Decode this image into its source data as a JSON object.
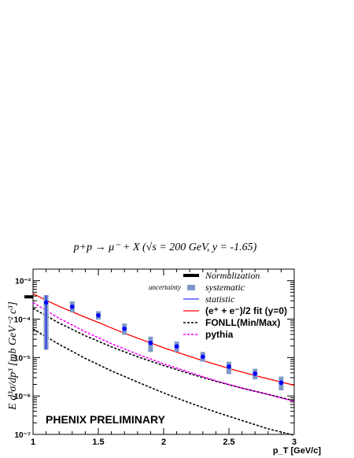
{
  "chart_data": {
    "type": "scatter",
    "title": "p+p → μ⁻ + X (√s = 200 GeV, y = -1.65)",
    "xlabel": "p_T [GeV/c]",
    "ylabel": "E d³σ/dp³ [mb GeV⁻² c³]",
    "xlim": [
      1,
      3
    ],
    "ylim": [
      1e-07,
      0.002
    ],
    "yscale": "log",
    "x_ticks": [
      {
        "value": 1,
        "label": "1"
      },
      {
        "value": 1.5,
        "label": "1.5"
      },
      {
        "value": 2,
        "label": "2"
      },
      {
        "value": 2.5,
        "label": "2.5"
      },
      {
        "value": 3,
        "label": "3"
      }
    ],
    "y_ticks": [
      {
        "value": 1e-07,
        "label": "10⁻⁷"
      },
      {
        "value": 1e-06,
        "label": "10⁻⁶"
      },
      {
        "value": 1e-05,
        "label": "10⁻⁵"
      },
      {
        "value": 0.0001,
        "label": "10⁻⁴"
      },
      {
        "value": 0.001,
        "label": "10⁻³"
      }
    ],
    "annotation": "PHENIX PRELIMINARY",
    "data_points": {
      "x": [
        1.1,
        1.3,
        1.5,
        1.7,
        1.9,
        2.1,
        2.3,
        2.5,
        2.7,
        2.9
      ],
      "y": [
        0.00027,
        0.00021,
        0.000125,
        5.6e-05,
        2.4e-05,
        1.95e-05,
        1.05e-05,
        5.8e-06,
        3.8e-06,
        2.2e-06
      ],
      "stat_low": [
        1.6e-05,
        0.00019,
        0.00011,
        4.9e-05,
        2.1e-05,
        1.7e-05,
        9.2e-06,
        5.1e-06,
        3.3e-06,
        1.9e-06
      ],
      "stat_high": [
        0.00042,
        0.00023,
        0.00014,
        6.3e-05,
        2.7e-05,
        2.2e-05,
        1.2e-05,
        6.6e-06,
        4.4e-06,
        2.6e-06
      ],
      "sys_low": [
        1.6e-05,
        0.00015,
        9.7e-05,
        3.9e-05,
        1.4e-05,
        1.4e-05,
        7.8e-06,
        3.7e-06,
        2.7e-06,
        1.4e-06
      ],
      "sys_high": [
        0.00042,
        0.00029,
        0.00016,
        7.7e-05,
        3.5e-05,
        2.6e-05,
        1.4e-05,
        7.8e-06,
        5.1e-06,
        3.2e-06
      ]
    },
    "series": [
      {
        "name": "(e⁺ + e⁻)/2 fit (y=0)",
        "style": "solid",
        "color": "#ff0000",
        "x": [
          1.0,
          1.1,
          1.2,
          1.3,
          1.4,
          1.5,
          1.6,
          1.7,
          1.8,
          1.9,
          2.0,
          2.1,
          2.2,
          2.3,
          2.4,
          2.5,
          2.6,
          2.7,
          2.8,
          2.9,
          3.0
        ],
        "y": [
          0.00046,
          0.00031,
          0.000215,
          0.000155,
          0.000112,
          8.2e-05,
          5.9e-05,
          4.3e-05,
          3.2e-05,
          2.4e-05,
          1.8e-05,
          1.38e-05,
          1.07e-05,
          8.3e-06,
          6.6e-06,
          5.2e-06,
          4.2e-06,
          3.4e-06,
          2.8e-06,
          2.3e-06,
          1.9e-06
        ]
      },
      {
        "name": "FONLL(Min/Max)",
        "style": "dashed",
        "color": "#000000",
        "x": [
          1.0,
          1.2,
          1.4,
          1.6,
          1.8,
          2.0,
          2.2,
          2.4,
          2.6,
          2.8,
          3.0
        ],
        "y": [
          0.00019,
          7.9e-05,
          3.7e-05,
          1.9e-05,
          1.05e-05,
          6.2e-06,
          3.8e-06,
          2.4e-06,
          1.6e-06,
          1.1e-06,
          7.5e-07
        ]
      },
      {
        "name": "FONLL(Min/Max)",
        "style": "dashed",
        "color": "#000000",
        "legend": false,
        "x": [
          1.0,
          1.2,
          1.4,
          1.6,
          1.8,
          2.0,
          2.2,
          2.4,
          2.6,
          2.8,
          3.0
        ],
        "y": [
          5.5e-05,
          2.2e-05,
          9.5e-06,
          4.5e-06,
          2.3e-06,
          1.2e-06,
          6.6e-07,
          3.8e-07,
          2.3e-07,
          1.4e-07,
          9.5e-08
        ]
      },
      {
        "name": "pythia",
        "style": "dashed",
        "color": "#ff00ff",
        "x": [
          1.0,
          1.2,
          1.4,
          1.6,
          1.8,
          2.0,
          2.2,
          2.4,
          2.6,
          2.8,
          3.0
        ],
        "y": [
          0.00027,
          0.000105,
          4.7e-05,
          2.3e-05,
          1.22e-05,
          6.9e-06,
          4.1e-06,
          2.5e-06,
          1.6e-06,
          1.1e-06,
          7.2e-07
        ]
      }
    ],
    "normalization": {
      "value": 0.00038,
      "x_from": 0.95,
      "x_to": 1.0
    },
    "legend": {
      "placement": "top-right",
      "entries": [
        {
          "key": "normalization",
          "label": "Normalization",
          "style": "italic"
        },
        {
          "key": "systematic",
          "label": "systematic",
          "prefix": "uncertainty",
          "style": "italic"
        },
        {
          "key": "statistic",
          "label": "statistic",
          "style": "italic"
        },
        {
          "key": "fit",
          "label": "(e⁺ + e⁻)/2 fit (y=0)",
          "style": "bold"
        },
        {
          "key": "fonll",
          "label": "FONLL(Min/Max)",
          "style": "bold"
        },
        {
          "key": "pythia",
          "label": "pythia",
          "style": "bold"
        }
      ]
    },
    "colors": {
      "marker": "#0000ff",
      "systematic": "#7f98c8",
      "statistic": "#0000ff",
      "fit": "#ff0000",
      "fonll": "#000000",
      "pythia": "#ff00ff"
    }
  }
}
